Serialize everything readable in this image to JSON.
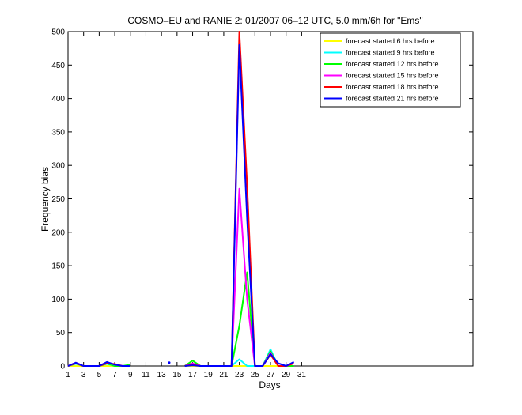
{
  "chart_data": {
    "type": "line",
    "title": "COSMO–EU and RANIE 2: 01/2007 06–12 UTC, 5.0 mm/6h for \"Ems\"",
    "xlabel": "Days",
    "ylabel": "Frequency bias",
    "xlim": [
      1,
      53
    ],
    "ylim": [
      0,
      500
    ],
    "xticks": [
      1,
      3,
      5,
      7,
      9,
      11,
      13,
      15,
      17,
      19,
      21,
      23,
      25,
      27,
      29,
      31
    ],
    "yticks": [
      0,
      50,
      100,
      150,
      200,
      250,
      300,
      350,
      400,
      450,
      500
    ],
    "grid": false,
    "legend_position": "top-right",
    "series": [
      {
        "name": "forecast started 6 hrs before",
        "color": "#ffff00",
        "segments": [
          [
            [
              1,
              0
            ],
            [
              2,
              0
            ],
            [
              3,
              0
            ],
            [
              4,
              0
            ],
            [
              5,
              0
            ],
            [
              6,
              0
            ],
            [
              7,
              0
            ],
            [
              8,
              0
            ],
            [
              9,
              0
            ]
          ],
          [
            [
              16,
              0
            ],
            [
              17,
              0
            ],
            [
              18,
              0
            ],
            [
              19,
              0
            ],
            [
              20,
              0
            ],
            [
              21,
              0
            ],
            [
              22,
              0
            ],
            [
              23,
              0
            ],
            [
              24,
              0
            ],
            [
              25,
              0
            ],
            [
              26,
              0
            ],
            [
              27,
              0
            ],
            [
              28,
              0
            ],
            [
              29,
              0
            ],
            [
              30,
              0
            ]
          ]
        ]
      },
      {
        "name": "forecast started 9 hrs before",
        "color": "#00ffff",
        "segments": [
          [
            [
              1,
              0
            ],
            [
              2,
              3
            ],
            [
              3,
              0
            ],
            [
              4,
              0
            ],
            [
              5,
              0
            ],
            [
              6,
              3
            ],
            [
              7,
              0
            ],
            [
              8,
              0
            ],
            [
              9,
              0
            ]
          ],
          [
            [
              16,
              0
            ],
            [
              17,
              3
            ],
            [
              18,
              0
            ],
            [
              19,
              0
            ],
            [
              20,
              0
            ],
            [
              21,
              0
            ],
            [
              22,
              0
            ],
            [
              23,
              10
            ],
            [
              24,
              0
            ],
            [
              25,
              0
            ],
            [
              26,
              0
            ],
            [
              27,
              25
            ],
            [
              28,
              0
            ],
            [
              29,
              0
            ],
            [
              30,
              0
            ]
          ]
        ]
      },
      {
        "name": "forecast started 12 hrs before",
        "color": "#00ff00",
        "segments": [
          [
            [
              1,
              0
            ],
            [
              2,
              4
            ],
            [
              3,
              0
            ],
            [
              4,
              0
            ],
            [
              5,
              0
            ],
            [
              6,
              4
            ],
            [
              7,
              0
            ],
            [
              8,
              0
            ],
            [
              9,
              2
            ]
          ],
          [
            [
              16,
              0
            ],
            [
              17,
              8
            ],
            [
              18,
              0
            ],
            [
              19,
              0
            ],
            [
              20,
              0
            ],
            [
              21,
              0
            ],
            [
              22,
              0
            ],
            [
              23,
              60
            ],
            [
              24,
              140
            ],
            [
              25,
              0
            ],
            [
              26,
              0
            ],
            [
              27,
              22
            ],
            [
              28,
              0
            ],
            [
              29,
              0
            ],
            [
              30,
              0
            ]
          ]
        ]
      },
      {
        "name": "forecast started 15 hrs before",
        "color": "#ff00ff",
        "segments": [
          [
            [
              1,
              0
            ],
            [
              2,
              5
            ],
            [
              3,
              0
            ],
            [
              4,
              0
            ],
            [
              5,
              0
            ],
            [
              6,
              5
            ],
            [
              7,
              2
            ],
            [
              8,
              0
            ],
            [
              9,
              0
            ]
          ],
          [
            [
              16,
              0
            ],
            [
              17,
              4
            ],
            [
              18,
              0
            ],
            [
              19,
              0
            ],
            [
              20,
              0
            ],
            [
              21,
              0
            ],
            [
              22,
              0
            ],
            [
              23,
              265
            ],
            [
              24,
              100
            ],
            [
              25,
              0
            ],
            [
              26,
              0
            ],
            [
              27,
              20
            ],
            [
              28,
              0
            ],
            [
              29,
              0
            ],
            [
              30,
              4
            ]
          ]
        ]
      },
      {
        "name": "forecast started 18 hrs before",
        "color": "#ff0000",
        "segments": [
          [
            [
              1,
              0
            ],
            [
              2,
              4
            ],
            [
              3,
              0
            ],
            [
              4,
              0
            ],
            [
              5,
              0
            ],
            [
              6,
              4
            ],
            [
              7,
              3
            ],
            [
              8,
              0
            ],
            [
              9,
              0
            ]
          ],
          [
            [
              16,
              0
            ],
            [
              17,
              2
            ],
            [
              18,
              0
            ],
            [
              19,
              0
            ],
            [
              20,
              0
            ],
            [
              21,
              0
            ],
            [
              22,
              0
            ],
            [
              23,
              500
            ],
            [
              24,
              270
            ],
            [
              25,
              0
            ],
            [
              26,
              0
            ],
            [
              27,
              17
            ],
            [
              28,
              0
            ],
            [
              29,
              0
            ],
            [
              30,
              4
            ]
          ]
        ]
      },
      {
        "name": "forecast started 21 hrs before",
        "color": "#0000ff",
        "segments": [
          [
            [
              1,
              0
            ],
            [
              2,
              5
            ],
            [
              3,
              0
            ],
            [
              4,
              0
            ],
            [
              5,
              0
            ],
            [
              6,
              6
            ],
            [
              7,
              2
            ],
            [
              8,
              0
            ],
            [
              9,
              0
            ]
          ],
          [
            [
              16,
              0
            ],
            [
              17,
              1
            ],
            [
              18,
              0
            ],
            [
              19,
              0
            ],
            [
              20,
              0
            ],
            [
              21,
              0
            ],
            [
              22,
              0
            ],
            [
              23,
              480
            ],
            [
              24,
              220
            ],
            [
              25,
              0
            ],
            [
              26,
              0
            ],
            [
              27,
              18
            ],
            [
              28,
              4
            ],
            [
              29,
              0
            ],
            [
              30,
              6
            ]
          ]
        ]
      }
    ],
    "isolated_points": [
      {
        "x": 14,
        "y": 5,
        "color": "#0000ff"
      }
    ]
  }
}
